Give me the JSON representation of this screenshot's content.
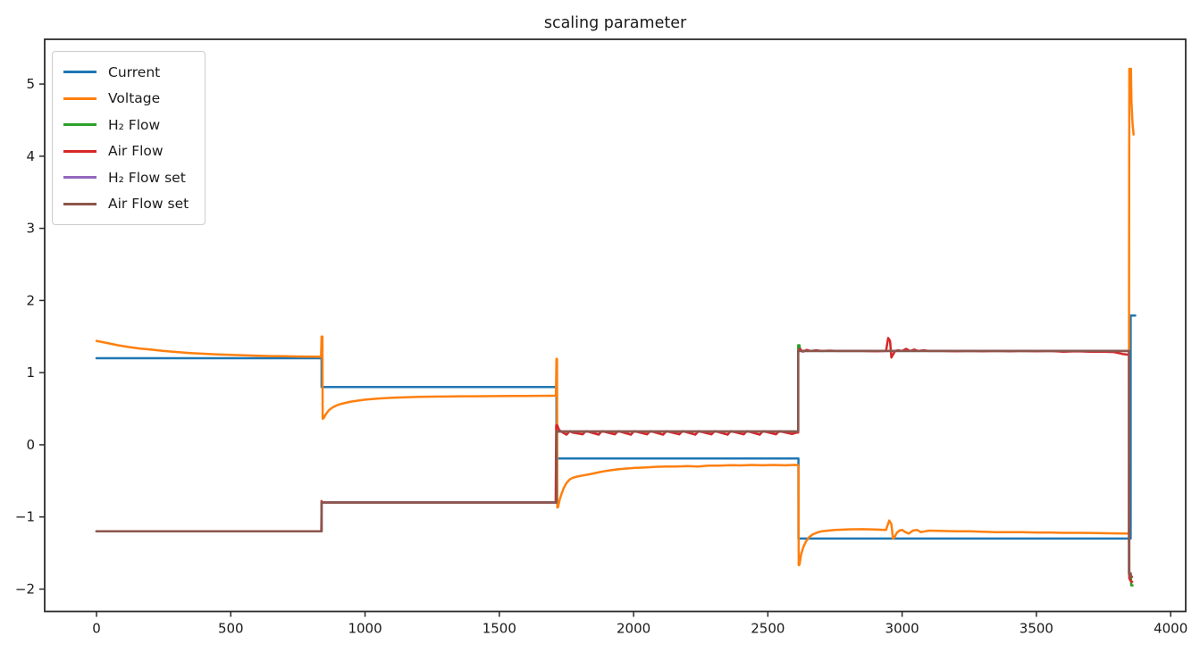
{
  "title": "scaling parameter",
  "chart_data": {
    "type": "line",
    "title": "scaling parameter",
    "xlabel": "",
    "ylabel": "",
    "xlim": [
      -193,
      4056
    ],
    "ylim": [
      -2.31,
      5.62
    ],
    "x_ticks": [
      0,
      500,
      1000,
      1500,
      2000,
      2500,
      3000,
      3500,
      4000
    ],
    "y_ticks": [
      -2,
      -1,
      0,
      1,
      2,
      3,
      4,
      5
    ],
    "grid": false,
    "legend_position": "upper-left",
    "series": [
      {
        "name": "Current",
        "color": "#1f77b4",
        "points": [
          [
            0,
            1.2
          ],
          [
            838,
            1.2
          ],
          [
            838,
            0.8
          ],
          [
            1713,
            0.8
          ],
          [
            1713,
            -0.19
          ],
          [
            2614,
            -0.19
          ],
          [
            2614,
            -1.3
          ],
          [
            3851,
            -1.3
          ],
          [
            3851,
            1.79
          ],
          [
            3868,
            1.79
          ]
        ]
      },
      {
        "name": "Voltage",
        "color": "#ff7f0e",
        "points": [
          [
            0,
            1.44
          ],
          [
            40,
            1.41
          ],
          [
            80,
            1.38
          ],
          [
            120,
            1.355
          ],
          [
            160,
            1.335
          ],
          [
            200,
            1.32
          ],
          [
            250,
            1.3
          ],
          [
            300,
            1.285
          ],
          [
            350,
            1.272
          ],
          [
            400,
            1.262
          ],
          [
            450,
            1.253
          ],
          [
            500,
            1.246
          ],
          [
            550,
            1.24
          ],
          [
            600,
            1.235
          ],
          [
            650,
            1.23
          ],
          [
            700,
            1.227
          ],
          [
            750,
            1.223
          ],
          [
            800,
            1.221
          ],
          [
            836,
            1.22
          ],
          [
            838,
            1.5
          ],
          [
            841,
            1.5
          ],
          [
            842,
            0.36
          ],
          [
            846,
            0.37
          ],
          [
            855,
            0.43
          ],
          [
            865,
            0.48
          ],
          [
            880,
            0.52
          ],
          [
            900,
            0.555
          ],
          [
            925,
            0.58
          ],
          [
            950,
            0.6
          ],
          [
            1000,
            0.625
          ],
          [
            1050,
            0.642
          ],
          [
            1100,
            0.652
          ],
          [
            1150,
            0.658
          ],
          [
            1200,
            0.664
          ],
          [
            1250,
            0.667
          ],
          [
            1300,
            0.669
          ],
          [
            1350,
            0.672
          ],
          [
            1400,
            0.673
          ],
          [
            1450,
            0.674
          ],
          [
            1500,
            0.675
          ],
          [
            1550,
            0.677
          ],
          [
            1600,
            0.678
          ],
          [
            1650,
            0.679
          ],
          [
            1700,
            0.68
          ],
          [
            1711,
            0.68
          ],
          [
            1713,
            1.19
          ],
          [
            1715,
            1.19
          ],
          [
            1716,
            -0.87
          ],
          [
            1719,
            -0.86
          ],
          [
            1725,
            -0.76
          ],
          [
            1732,
            -0.68
          ],
          [
            1740,
            -0.6
          ],
          [
            1750,
            -0.53
          ],
          [
            1762,
            -0.48
          ],
          [
            1775,
            -0.455
          ],
          [
            1790,
            -0.44
          ],
          [
            1810,
            -0.425
          ],
          [
            1835,
            -0.41
          ],
          [
            1860,
            -0.39
          ],
          [
            1885,
            -0.37
          ],
          [
            1910,
            -0.355
          ],
          [
            1940,
            -0.34
          ],
          [
            1970,
            -0.33
          ],
          [
            2000,
            -0.322
          ],
          [
            2040,
            -0.315
          ],
          [
            2080,
            -0.305
          ],
          [
            2120,
            -0.3
          ],
          [
            2160,
            -0.302
          ],
          [
            2200,
            -0.295
          ],
          [
            2240,
            -0.3
          ],
          [
            2280,
            -0.288
          ],
          [
            2320,
            -0.29
          ],
          [
            2360,
            -0.282
          ],
          [
            2400,
            -0.286
          ],
          [
            2440,
            -0.28
          ],
          [
            2480,
            -0.284
          ],
          [
            2520,
            -0.28
          ],
          [
            2560,
            -0.284
          ],
          [
            2600,
            -0.28
          ],
          [
            2612,
            -0.28
          ],
          [
            2614,
            -0.3
          ],
          [
            2615,
            -1.67
          ],
          [
            2618,
            -1.66
          ],
          [
            2624,
            -1.52
          ],
          [
            2632,
            -1.42
          ],
          [
            2642,
            -1.34
          ],
          [
            2654,
            -1.28
          ],
          [
            2668,
            -1.24
          ],
          [
            2684,
            -1.215
          ],
          [
            2700,
            -1.2
          ],
          [
            2725,
            -1.19
          ],
          [
            2750,
            -1.18
          ],
          [
            2800,
            -1.172
          ],
          [
            2850,
            -1.17
          ],
          [
            2900,
            -1.175
          ],
          [
            2940,
            -1.18
          ],
          [
            2952,
            -1.05
          ],
          [
            2960,
            -1.1
          ],
          [
            2966,
            -1.3
          ],
          [
            2972,
            -1.28
          ],
          [
            2980,
            -1.22
          ],
          [
            2990,
            -1.19
          ],
          [
            3000,
            -1.18
          ],
          [
            3012,
            -1.21
          ],
          [
            3025,
            -1.23
          ],
          [
            3040,
            -1.19
          ],
          [
            3055,
            -1.18
          ],
          [
            3070,
            -1.21
          ],
          [
            3085,
            -1.2
          ],
          [
            3100,
            -1.19
          ],
          [
            3150,
            -1.195
          ],
          [
            3200,
            -1.2
          ],
          [
            3250,
            -1.2
          ],
          [
            3300,
            -1.205
          ],
          [
            3350,
            -1.21
          ],
          [
            3400,
            -1.21
          ],
          [
            3450,
            -1.212
          ],
          [
            3500,
            -1.215
          ],
          [
            3550,
            -1.215
          ],
          [
            3600,
            -1.22
          ],
          [
            3650,
            -1.22
          ],
          [
            3700,
            -1.222
          ],
          [
            3750,
            -1.225
          ],
          [
            3800,
            -1.228
          ],
          [
            3840,
            -1.23
          ],
          [
            3844,
            -1.23
          ],
          [
            3846,
            5.21
          ],
          [
            3852,
            5.21
          ],
          [
            3854,
            4.75
          ],
          [
            3858,
            4.45
          ],
          [
            3862,
            4.3
          ]
        ]
      },
      {
        "name": "H₂ Flow",
        "color": "#2ca02c",
        "points": [
          [
            0,
            -1.2
          ],
          [
            838,
            -1.2
          ],
          [
            838,
            -0.8
          ],
          [
            1713,
            -0.8
          ],
          [
            1713,
            0.185
          ],
          [
            2613,
            0.185
          ],
          [
            2613,
            1.38
          ],
          [
            2618,
            1.38
          ],
          [
            2620,
            1.3
          ],
          [
            3845,
            1.3
          ],
          [
            3845,
            -1.8
          ],
          [
            3852,
            -1.8
          ],
          [
            3853,
            -1.95
          ],
          [
            3858,
            -1.95
          ]
        ]
      },
      {
        "name": "Air Flow",
        "color": "#d62728",
        "points": [
          [
            0,
            -1.2
          ],
          [
            836,
            -1.2
          ],
          [
            837,
            -1.17
          ],
          [
            838,
            -0.78
          ],
          [
            840,
            -0.8
          ],
          [
            1710,
            -0.8
          ],
          [
            1712,
            0.27
          ],
          [
            1716,
            0.27
          ],
          [
            1722,
            0.21
          ],
          [
            1730,
            0.185
          ],
          [
            1750,
            0.14
          ],
          [
            1762,
            0.19
          ],
          [
            1772,
            0.17
          ],
          [
            1810,
            0.145
          ],
          [
            1822,
            0.19
          ],
          [
            1870,
            0.14
          ],
          [
            1882,
            0.19
          ],
          [
            1930,
            0.145
          ],
          [
            1942,
            0.19
          ],
          [
            1990,
            0.14
          ],
          [
            2002,
            0.19
          ],
          [
            2050,
            0.145
          ],
          [
            2062,
            0.19
          ],
          [
            2110,
            0.14
          ],
          [
            2122,
            0.19
          ],
          [
            2170,
            0.145
          ],
          [
            2182,
            0.19
          ],
          [
            2230,
            0.14
          ],
          [
            2242,
            0.19
          ],
          [
            2290,
            0.145
          ],
          [
            2302,
            0.19
          ],
          [
            2350,
            0.14
          ],
          [
            2362,
            0.19
          ],
          [
            2410,
            0.145
          ],
          [
            2422,
            0.19
          ],
          [
            2470,
            0.14
          ],
          [
            2482,
            0.19
          ],
          [
            2530,
            0.145
          ],
          [
            2542,
            0.19
          ],
          [
            2590,
            0.15
          ],
          [
            2608,
            0.17
          ],
          [
            2613,
            0.17
          ],
          [
            2613,
            1.3
          ],
          [
            2620,
            1.33
          ],
          [
            2630,
            1.29
          ],
          [
            2645,
            1.315
          ],
          [
            2660,
            1.3
          ],
          [
            2680,
            1.31
          ],
          [
            2700,
            1.3
          ],
          [
            2730,
            1.305
          ],
          [
            2760,
            1.3
          ],
          [
            2800,
            1.3
          ],
          [
            2850,
            1.3
          ],
          [
            2900,
            1.295
          ],
          [
            2940,
            1.3
          ],
          [
            2948,
            1.48
          ],
          [
            2955,
            1.44
          ],
          [
            2960,
            1.21
          ],
          [
            2966,
            1.25
          ],
          [
            2974,
            1.3
          ],
          [
            2985,
            1.31
          ],
          [
            3000,
            1.3
          ],
          [
            3015,
            1.33
          ],
          [
            3030,
            1.3
          ],
          [
            3045,
            1.32
          ],
          [
            3060,
            1.3
          ],
          [
            3080,
            1.31
          ],
          [
            3100,
            1.3
          ],
          [
            3150,
            1.3
          ],
          [
            3200,
            1.295
          ],
          [
            3250,
            1.3
          ],
          [
            3300,
            1.295
          ],
          [
            3350,
            1.3
          ],
          [
            3400,
            1.295
          ],
          [
            3450,
            1.3
          ],
          [
            3500,
            1.295
          ],
          [
            3550,
            1.3
          ],
          [
            3600,
            1.29
          ],
          [
            3650,
            1.295
          ],
          [
            3700,
            1.29
          ],
          [
            3750,
            1.29
          ],
          [
            3790,
            1.285
          ],
          [
            3820,
            1.26
          ],
          [
            3840,
            1.25
          ],
          [
            3845,
            1.25
          ],
          [
            3846,
            -1.85
          ],
          [
            3850,
            -1.88
          ],
          [
            3854,
            -1.9
          ],
          [
            3857,
            -1.9
          ]
        ]
      },
      {
        "name": "H₂ Flow set",
        "color": "#9467bd",
        "points": [
          [
            0,
            -1.2
          ],
          [
            838,
            -1.2
          ],
          [
            838,
            -0.8
          ],
          [
            1713,
            -0.8
          ],
          [
            1713,
            0.185
          ],
          [
            2613,
            0.185
          ],
          [
            2613,
            1.3
          ],
          [
            3845,
            1.3
          ],
          [
            3845,
            -1.78
          ],
          [
            3851,
            -1.78
          ],
          [
            3851,
            -1.83
          ],
          [
            3856,
            -1.83
          ]
        ]
      },
      {
        "name": "Air Flow set",
        "color": "#8c564b",
        "points": [
          [
            0,
            -1.2
          ],
          [
            838,
            -1.2
          ],
          [
            838,
            -0.8
          ],
          [
            1713,
            -0.8
          ],
          [
            1713,
            0.185
          ],
          [
            2613,
            0.185
          ],
          [
            2613,
            1.3
          ],
          [
            3845,
            1.3
          ],
          [
            3845,
            -1.78
          ],
          [
            3851,
            -1.78
          ],
          [
            3851,
            -1.83
          ],
          [
            3856,
            -1.83
          ]
        ]
      }
    ]
  }
}
